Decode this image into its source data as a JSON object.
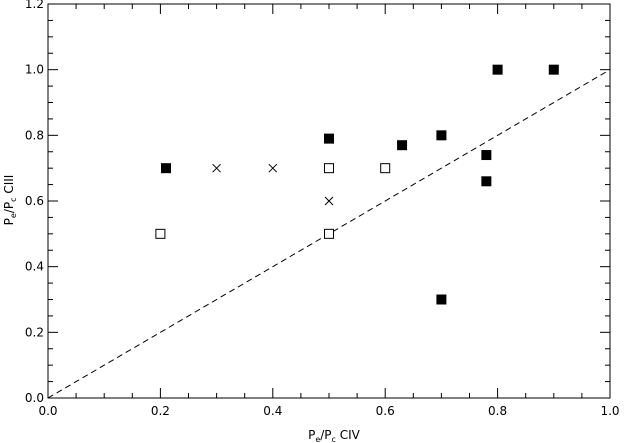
{
  "chart_data": {
    "type": "scatter",
    "xlabel": {
      "main": "P",
      "sub1": "e",
      "mid": "/P",
      "sub2": "c",
      "suffix": " CIV"
    },
    "ylabel": {
      "main": "P",
      "sub1": "e",
      "mid": "/P",
      "sub2": "c",
      "suffix": " CIII"
    },
    "xlim": [
      0.0,
      1.0
    ],
    "ylim": [
      0.0,
      1.2
    ],
    "xticks": [
      "0.0",
      "0.2",
      "0.4",
      "0.6",
      "0.8",
      "1.0"
    ],
    "yticks": [
      "0.0",
      "0.2",
      "0.4",
      "0.6",
      "0.8",
      "1.0",
      "1.2"
    ],
    "grid": false,
    "reference_line": {
      "style": "dashed",
      "from": [
        0.0,
        0.0
      ],
      "to": [
        1.0,
        1.0
      ]
    },
    "series": [
      {
        "marker": "filled-square",
        "points": [
          [
            0.21,
            0.7
          ],
          [
            0.5,
            0.79
          ],
          [
            0.63,
            0.77
          ],
          [
            0.7,
            0.8
          ],
          [
            0.7,
            0.3
          ],
          [
            0.78,
            0.74
          ],
          [
            0.78,
            0.66
          ],
          [
            0.8,
            1.0
          ],
          [
            0.9,
            1.0
          ]
        ]
      },
      {
        "marker": "open-square",
        "points": [
          [
            0.2,
            0.5
          ],
          [
            0.5,
            0.7
          ],
          [
            0.5,
            0.5
          ],
          [
            0.6,
            0.7
          ]
        ]
      },
      {
        "marker": "cross",
        "points": [
          [
            0.3,
            0.7
          ],
          [
            0.4,
            0.7
          ],
          [
            0.5,
            0.6
          ]
        ]
      }
    ]
  }
}
